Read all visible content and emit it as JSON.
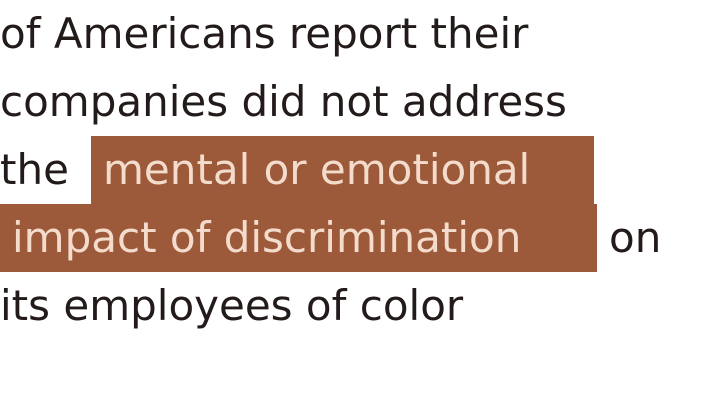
{
  "statement": {
    "line1": "of Americans report their",
    "line2": "companies did not address",
    "line3_plain": "the",
    "line3_highlight": "mental or emotional",
    "line4_highlight": "impact of discrimination",
    "line4_plain": "on",
    "line5": "its employees of color"
  },
  "colors": {
    "text": "#231a1a",
    "highlight_background": "#9c5a3a",
    "highlight_text": "#f4dccd"
  }
}
